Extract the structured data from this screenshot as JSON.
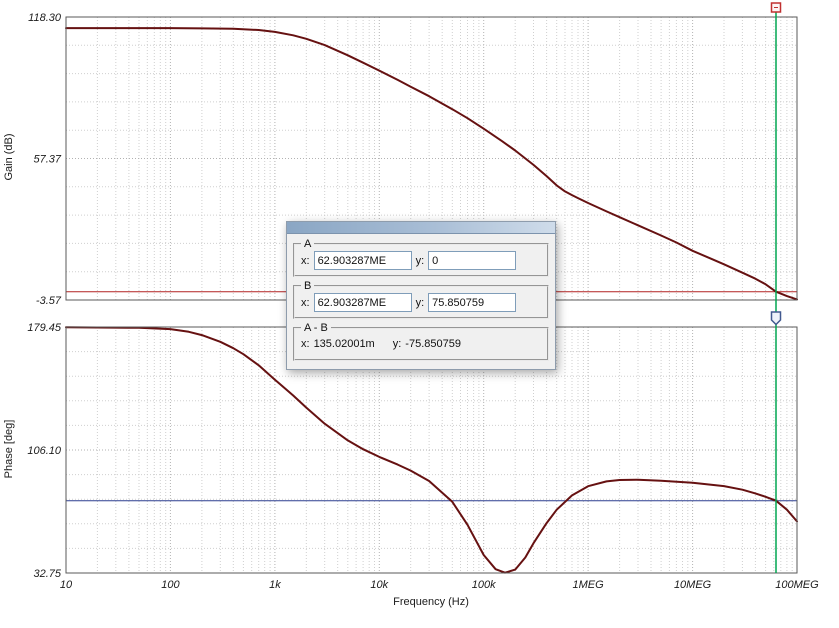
{
  "cursor": {
    "x_value": 62903287,
    "line_color": "#00a550",
    "a_marker_color": "#c03030",
    "b_marker_color": "#41598f"
  },
  "dialog": {
    "title": "",
    "groups": [
      {
        "name": "A",
        "x_label": "x:",
        "x_value": "62.903287ME",
        "y_label": "y:",
        "y_value": "0"
      },
      {
        "name": "B",
        "x_label": "x:",
        "x_value": "62.903287ME",
        "y_label": "y:",
        "y_value": "75.850759"
      },
      {
        "name": "A - B",
        "x_label": "x:",
        "x_value": "135.02001m",
        "y_label": "y:",
        "y_value": "-75.850759"
      }
    ]
  },
  "chart_data": [
    {
      "type": "line",
      "title": "",
      "ylabel": "Gain (dB)",
      "xlabel": "Frequency (Hz)",
      "x_scale": "log",
      "xlim": [
        10,
        100000000
      ],
      "ylim": [
        -3.57,
        118.3
      ],
      "grid": "dotted",
      "legend_position": "none",
      "y_ticks": [
        {
          "value": 118.3,
          "label": "118.30"
        },
        {
          "value": 57.37,
          "label": "57.37"
        },
        {
          "value": -3.57,
          "label": "-3.57"
        }
      ],
      "x_ticks": [
        "10",
        "100",
        "1k",
        "10k",
        "100k",
        "1MEG",
        "10MEG",
        "100MEG"
      ],
      "x_tick_values": [
        10,
        100,
        1000,
        10000,
        100000,
        1000000,
        10000000,
        100000000
      ],
      "cursor_hline": {
        "value": 0,
        "color": "#b22222"
      },
      "series": [
        {
          "name": "gain",
          "color": "#661111",
          "points": [
            [
              10,
              113.5
            ],
            [
              50,
              113.5
            ],
            [
              100,
              113.5
            ],
            [
              200,
              113.4
            ],
            [
              400,
              113.2
            ],
            [
              700,
              112.7
            ],
            [
              1000,
              111.9
            ],
            [
              1500,
              110.4
            ],
            [
              2000,
              108.9
            ],
            [
              3000,
              106.2
            ],
            [
              5000,
              101.8
            ],
            [
              7000,
              98.6
            ],
            [
              10000,
              95.2
            ],
            [
              15000,
              91.2
            ],
            [
              20000,
              88.3
            ],
            [
              30000,
              84.2
            ],
            [
              50000,
              78.6
            ],
            [
              70000,
              74.7
            ],
            [
              100000,
              70.2
            ],
            [
              150000,
              64.8
            ],
            [
              200000,
              60.8
            ],
            [
              300000,
              54.6
            ],
            [
              400000,
              49.8
            ],
            [
              500000,
              45.8
            ],
            [
              600000,
              43.2
            ],
            [
              700000,
              41.6
            ],
            [
              800000,
              40.3
            ],
            [
              1000000,
              38.2
            ],
            [
              1500000,
              34.6
            ],
            [
              2000000,
              32.1
            ],
            [
              3000000,
              28.6
            ],
            [
              5000000,
              24.2
            ],
            [
              7000000,
              21.2
            ],
            [
              10000000,
              17.6
            ],
            [
              15000000,
              14.2
            ],
            [
              20000000,
              11.8
            ],
            [
              30000000,
              8.2
            ],
            [
              40000000,
              5.6
            ],
            [
              50000000,
              3.2
            ],
            [
              62903287,
              0
            ],
            [
              80000000,
              -1.9
            ],
            [
              100000000,
              -3.3
            ]
          ]
        }
      ]
    },
    {
      "type": "line",
      "title": "",
      "ylabel": "Phase [deg]",
      "xlabel": "Frequency (Hz)",
      "x_scale": "log",
      "xlim": [
        10,
        100000000
      ],
      "ylim": [
        32.75,
        179.45
      ],
      "grid": "dotted",
      "legend_position": "none",
      "y_ticks": [
        {
          "value": 179.45,
          "label": "179.45"
        },
        {
          "value": 106.1,
          "label": "106.10"
        },
        {
          "value": 32.75,
          "label": "32.75"
        }
      ],
      "x_ticks": [
        "10",
        "100",
        "1k",
        "10k",
        "100k",
        "1MEG",
        "10MEG",
        "100MEG"
      ],
      "x_tick_values": [
        10,
        100,
        1000,
        10000,
        100000,
        1000000,
        10000000,
        100000000
      ],
      "cursor_hline": {
        "value": 75.850759,
        "color": "#2d3f8f"
      },
      "series": [
        {
          "name": "phase",
          "color": "#661111",
          "points": [
            [
              10,
              179.3
            ],
            [
              50,
              179.0
            ],
            [
              100,
              178.2
            ],
            [
              150,
              176.6
            ],
            [
              200,
              174.6
            ],
            [
              300,
              170.6
            ],
            [
              400,
              166.8
            ],
            [
              500,
              163.2
            ],
            [
              700,
              156.6
            ],
            [
              1000,
              148.0
            ],
            [
              1500,
              138.6
            ],
            [
              2000,
              131.4
            ],
            [
              3000,
              121.8
            ],
            [
              5000,
              111.8
            ],
            [
              7000,
              106.6
            ],
            [
              10000,
              102.0
            ],
            [
              15000,
              97.4
            ],
            [
              20000,
              93.8
            ],
            [
              30000,
              87.6
            ],
            [
              50000,
              75.2
            ],
            [
              70000,
              61.5
            ],
            [
              100000,
              43.5
            ],
            [
              130000,
              35.0
            ],
            [
              160000,
              32.9
            ],
            [
              200000,
              34.8
            ],
            [
              250000,
              42.0
            ],
            [
              300000,
              50.5
            ],
            [
              400000,
              62.5
            ],
            [
              500000,
              70.5
            ],
            [
              700000,
              79.0
            ],
            [
              1000000,
              84.5
            ],
            [
              1500000,
              87.4
            ],
            [
              2000000,
              88.2
            ],
            [
              3000000,
              88.4
            ],
            [
              5000000,
              87.8
            ],
            [
              10000000,
              86.6
            ],
            [
              20000000,
              84.6
            ],
            [
              30000000,
              82.4
            ],
            [
              40000000,
              80.2
            ],
            [
              50000000,
              78.2
            ],
            [
              62903287,
              75.85
            ],
            [
              80000000,
              70.5
            ],
            [
              100000000,
              63.5
            ]
          ]
        }
      ]
    }
  ]
}
